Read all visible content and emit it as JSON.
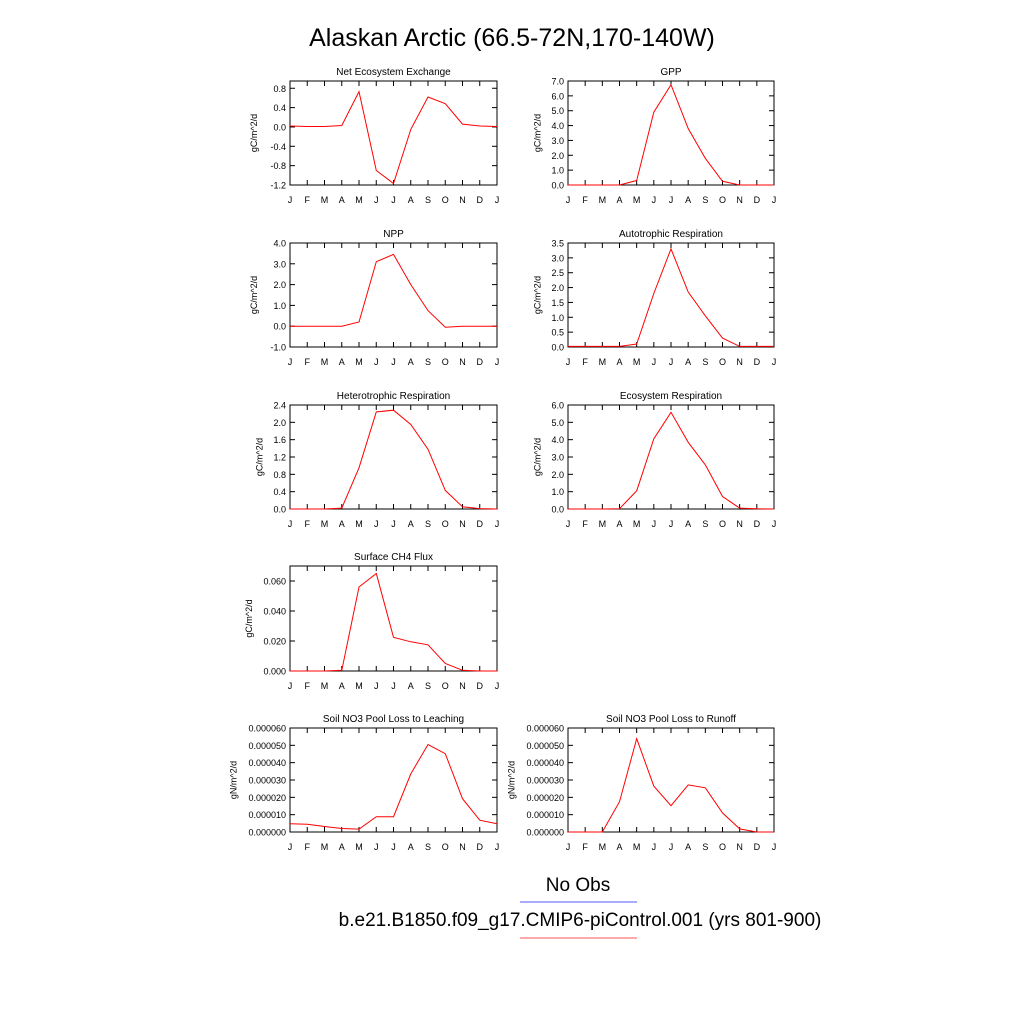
{
  "page": {
    "title": "Alaskan Arctic (66.5-72N,170-140W)",
    "legend": [
      {
        "label": "No Obs",
        "color": "#7777ff"
      },
      {
        "label": "b.e21.B1850.f09_g17.CMIP6-piControl.001 (yrs 801-900)",
        "color": "#ff7777"
      }
    ],
    "line_color": "#ff0000"
  },
  "chart_data": [
    {
      "type": "line",
      "title": "Net Ecosystem Exchange",
      "ylabel": "gC/m^2/d",
      "categories": [
        "J",
        "F",
        "M",
        "A",
        "M",
        "J",
        "J",
        "A",
        "S",
        "O",
        "N",
        "D",
        "J"
      ],
      "yticks": [
        "0.8",
        "0.4",
        "0.0",
        "-0.4",
        "-0.8",
        "-1.2"
      ],
      "ylim": [
        -1.2,
        0.95
      ],
      "values": [
        0.02,
        0.01,
        0.01,
        0.03,
        0.73,
        -0.9,
        -1.17,
        -0.05,
        0.62,
        0.48,
        0.06,
        0.02,
        0.01
      ]
    },
    {
      "type": "line",
      "title": "GPP",
      "ylabel": "gC/m^2/d",
      "categories": [
        "J",
        "F",
        "M",
        "A",
        "M",
        "J",
        "J",
        "A",
        "S",
        "O",
        "N",
        "D",
        "J"
      ],
      "yticks": [
        "7.0",
        "6.0",
        "5.0",
        "4.0",
        "3.0",
        "2.0",
        "1.0",
        "0.0"
      ],
      "ylim": [
        0,
        7.0
      ],
      "values": [
        0.0,
        0.0,
        0.0,
        0.0,
        0.3,
        4.9,
        6.75,
        3.8,
        1.8,
        0.25,
        0.0,
        0.0,
        0.0
      ]
    },
    {
      "type": "line",
      "title": "NPP",
      "ylabel": "gC/m^2/d",
      "categories": [
        "J",
        "F",
        "M",
        "A",
        "M",
        "J",
        "J",
        "A",
        "S",
        "O",
        "N",
        "D",
        "J"
      ],
      "yticks": [
        "4.0",
        "3.0",
        "2.0",
        "1.0",
        "0.0",
        "-1.0"
      ],
      "ylim": [
        -1.0,
        4.0
      ],
      "values": [
        0.0,
        0.0,
        0.0,
        0.0,
        0.2,
        3.1,
        3.45,
        2.0,
        0.75,
        -0.05,
        0.0,
        0.0,
        0.0
      ]
    },
    {
      "type": "line",
      "title": "Autotrophic Respiration",
      "ylabel": "gC/m^2/d",
      "categories": [
        "J",
        "F",
        "M",
        "A",
        "M",
        "J",
        "J",
        "A",
        "S",
        "O",
        "N",
        "D",
        "J"
      ],
      "yticks": [
        "3.5",
        "3.0",
        "2.5",
        "2.0",
        "1.5",
        "1.0",
        "0.5",
        "0.0"
      ],
      "ylim": [
        0,
        3.5
      ],
      "values": [
        0.02,
        0.02,
        0.02,
        0.02,
        0.1,
        1.8,
        3.3,
        1.85,
        1.05,
        0.3,
        0.02,
        0.02,
        0.02
      ]
    },
    {
      "type": "line",
      "title": "Heterotrophic Respiration",
      "ylabel": "gC/m^2/d",
      "categories": [
        "J",
        "F",
        "M",
        "A",
        "M",
        "J",
        "J",
        "A",
        "S",
        "O",
        "N",
        "D",
        "J"
      ],
      "yticks": [
        "2.4",
        "2.0",
        "1.6",
        "1.2",
        "0.8",
        "0.4",
        "0.0"
      ],
      "ylim": [
        0,
        2.4
      ],
      "values": [
        0.0,
        0.0,
        0.0,
        0.02,
        0.95,
        2.24,
        2.28,
        1.95,
        1.38,
        0.43,
        0.05,
        0.01,
        0.0
      ]
    },
    {
      "type": "line",
      "title": "Ecosystem Respiration",
      "ylabel": "gC/m^2/d",
      "categories": [
        "J",
        "F",
        "M",
        "A",
        "M",
        "J",
        "J",
        "A",
        "S",
        "O",
        "N",
        "D",
        "J"
      ],
      "yticks": [
        "6.0",
        "5.0",
        "4.0",
        "3.0",
        "2.0",
        "1.0",
        "0.0"
      ],
      "ylim": [
        0,
        6.0
      ],
      "values": [
        0.0,
        0.0,
        0.0,
        0.02,
        1.05,
        4.05,
        5.58,
        3.85,
        2.55,
        0.72,
        0.05,
        0.01,
        0.0
      ]
    },
    {
      "type": "line",
      "title": "Surface CH4 Flux",
      "ylabel": "gC/m^2/d",
      "categories": [
        "J",
        "F",
        "M",
        "A",
        "M",
        "J",
        "J",
        "A",
        "S",
        "O",
        "N",
        "D",
        "J"
      ],
      "yticks": [
        "0.060",
        "0.040",
        "0.020",
        "0.000"
      ],
      "ylim": [
        0,
        0.07
      ],
      "values": [
        0.0,
        0.0,
        0.0,
        0.0005,
        0.056,
        0.065,
        0.0225,
        0.0195,
        0.0175,
        0.005,
        0.0005,
        0.0,
        0.0
      ]
    },
    {
      "type": "line",
      "title": "Soil NO3 Pool Loss to Leaching",
      "ylabel": "gN/m^2/d",
      "categories": [
        "J",
        "F",
        "M",
        "A",
        "M",
        "J",
        "J",
        "A",
        "S",
        "O",
        "N",
        "D",
        "J"
      ],
      "yticks": [
        "0.000060",
        "0.000050",
        "0.000040",
        "0.000030",
        "0.000020",
        "0.000010",
        "0.000000"
      ],
      "ylim": [
        0,
        6e-05
      ],
      "values": [
        4.8e-06,
        4.5e-06,
        3.2e-06,
        2e-06,
        1.7e-06,
        8.8e-06,
        8.8e-06,
        3.35e-05,
        5.05e-05,
        4.52e-05,
        1.92e-05,
        6.8e-06,
        4.8e-06
      ]
    },
    {
      "type": "line",
      "title": "Soil NO3 Pool Loss to Runoff",
      "ylabel": "gN/m^2/d",
      "categories": [
        "J",
        "F",
        "M",
        "A",
        "M",
        "J",
        "J",
        "A",
        "S",
        "O",
        "N",
        "D",
        "J"
      ],
      "yticks": [
        "0.000060",
        "0.000050",
        "0.000040",
        "0.000030",
        "0.000020",
        "0.000010",
        "0.000000"
      ],
      "ylim": [
        0,
        6e-05
      ],
      "values": [
        0.0,
        0.0,
        0.0,
        1.75e-05,
        5.38e-05,
        2.65e-05,
        1.52e-05,
        2.72e-05,
        2.55e-05,
        1.1e-05,
        1.8e-06,
        0.0,
        0.0
      ]
    }
  ]
}
